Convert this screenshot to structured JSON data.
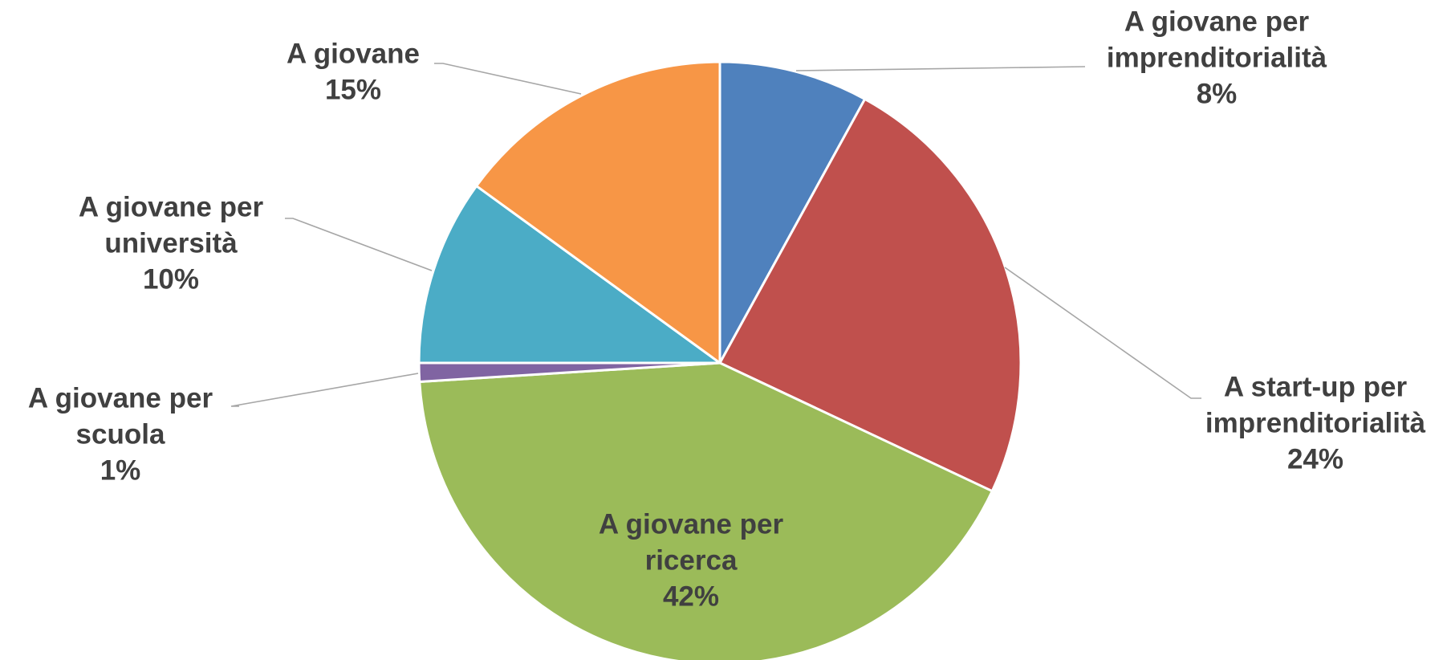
{
  "chart_data": {
    "type": "pie",
    "start_angle_deg": 0,
    "direction": "clockwise",
    "slices": [
      {
        "label_lines": [
          "A giovane per",
          "imprenditorialità"
        ],
        "percent_label": "8%",
        "value": 8,
        "color": "#4F81BD"
      },
      {
        "label_lines": [
          "A start-up per",
          "imprenditorialità"
        ],
        "percent_label": "24%",
        "value": 24,
        "color": "#C0504D"
      },
      {
        "label_lines": [
          "A giovane per",
          "ricerca"
        ],
        "percent_label": "42%",
        "value": 42,
        "color": "#9BBB59"
      },
      {
        "label_lines": [
          "A giovane per",
          "scuola"
        ],
        "percent_label": "1%",
        "value": 1,
        "color": "#8064A2"
      },
      {
        "label_lines": [
          "A giovane per",
          "università"
        ],
        "percent_label": "10%",
        "value": 10,
        "color": "#4BACC6"
      },
      {
        "label_lines": [
          "A giovane"
        ],
        "percent_label": "15%",
        "value": 15,
        "color": "#F79646"
      }
    ]
  }
}
